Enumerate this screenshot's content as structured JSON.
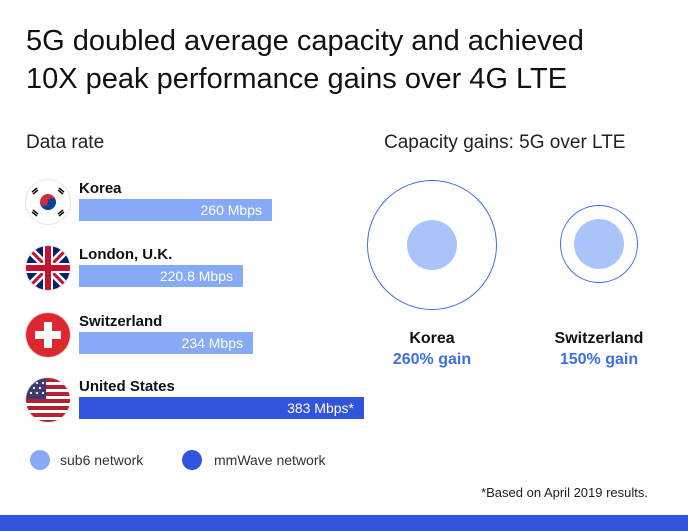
{
  "title_line1": "5G doubled average capacity and achieved",
  "title_line2": "10X peak performance gains over 4G LTE",
  "colors": {
    "sub6": "#86aaf6",
    "mmwave": "#3253dc",
    "outline": "#3d6fe0",
    "inner": "#a9c4f8",
    "gain_text": "#3d6fe0"
  },
  "chart_data": [
    {
      "type": "bar",
      "title": "Data rate",
      "unit": "Mbps",
      "categories": [
        "Korea",
        "London, U.K.",
        "Switzerland",
        "United States"
      ],
      "values": [
        260,
        220.8,
        234,
        383
      ],
      "value_labels": [
        "260 Mbps",
        "220.8 Mbps",
        "234 Mbps",
        "383 Mbps*"
      ],
      "network": [
        "sub6",
        "sub6",
        "sub6",
        "mmWave"
      ],
      "flag_icons": [
        "korea-flag-icon",
        "uk-flag-icon",
        "switzerland-flag-icon",
        "usa-flag-icon"
      ],
      "legend": [
        {
          "name": "sub6 network",
          "key": "sub6"
        },
        {
          "name": "mmWave network",
          "key": "mmwave"
        }
      ],
      "xlim": [
        0,
        383
      ]
    },
    {
      "type": "bubble",
      "title": "Capacity gains: 5G over LTE",
      "categories": [
        "Korea",
        "Switzerland"
      ],
      "values": [
        260,
        150
      ],
      "value_labels": [
        "260% gain",
        "150% gain"
      ]
    }
  ],
  "footnote": "*Based on April 2019 results."
}
